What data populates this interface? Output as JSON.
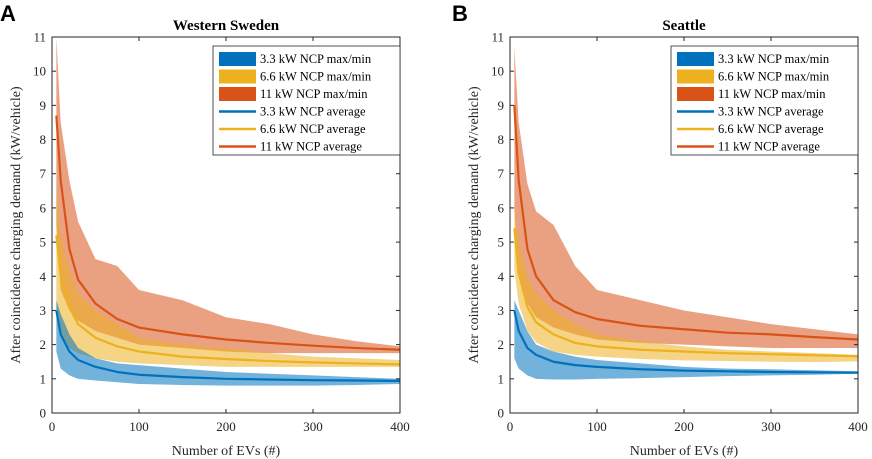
{
  "chart_data": [
    {
      "type": "area",
      "panel_label": "A",
      "title": "Western Sweden",
      "xlabel": "Number of EVs (#)",
      "ylabel": "After coincidence charging demand (kW/vehicle)",
      "xlim": [
        0,
        400
      ],
      "ylim": [
        0,
        11
      ],
      "xticks": [
        "0",
        "100",
        "200",
        "300",
        "400"
      ],
      "yticks": [
        "0",
        "1",
        "2",
        "3",
        "4",
        "5",
        "6",
        "7",
        "8",
        "9",
        "10",
        "11"
      ],
      "grid": false,
      "legend_position": "top-right",
      "x": [
        5,
        10,
        20,
        30,
        50,
        75,
        100,
        150,
        200,
        250,
        300,
        350,
        400
      ],
      "bands": [
        {
          "name": "11 kW NCP max/min",
          "color": "#D95319",
          "upper": [
            11.0,
            8.5,
            6.8,
            5.6,
            4.5,
            4.3,
            3.6,
            3.3,
            2.8,
            2.6,
            2.3,
            2.1,
            1.95
          ],
          "lower": [
            5.5,
            3.6,
            3.0,
            2.7,
            2.4,
            2.2,
            2.0,
            1.9,
            1.8,
            1.75,
            1.75,
            1.75,
            1.75
          ]
        },
        {
          "name": "6.6 kW NCP max/min",
          "color": "#EDB120",
          "upper": [
            6.6,
            5.2,
            4.2,
            3.5,
            3.0,
            2.6,
            2.2,
            2.0,
            1.9,
            1.75,
            1.65,
            1.6,
            1.55
          ],
          "lower": [
            2.9,
            2.2,
            1.9,
            1.75,
            1.6,
            1.5,
            1.45,
            1.4,
            1.35,
            1.35,
            1.35,
            1.35,
            1.35
          ]
        },
        {
          "name": "3.3 kW NCP max/min",
          "color": "#0072BD",
          "upper": [
            3.3,
            2.9,
            2.3,
            1.9,
            1.6,
            1.45,
            1.4,
            1.3,
            1.2,
            1.15,
            1.1,
            1.05,
            1.0
          ],
          "lower": [
            1.8,
            1.3,
            1.1,
            1.0,
            0.95,
            0.9,
            0.85,
            0.82,
            0.8,
            0.8,
            0.8,
            0.82,
            0.85
          ]
        }
      ],
      "series": [
        {
          "name": "3.3 kW NCP average",
          "color": "#0072BD",
          "values": [
            3.0,
            2.3,
            1.8,
            1.55,
            1.35,
            1.2,
            1.12,
            1.05,
            1.0,
            0.98,
            0.96,
            0.95,
            0.94
          ]
        },
        {
          "name": "6.6 kW NCP average",
          "color": "#EDB120",
          "values": [
            5.2,
            4.0,
            3.1,
            2.6,
            2.2,
            1.95,
            1.8,
            1.65,
            1.58,
            1.52,
            1.48,
            1.45,
            1.42
          ]
        },
        {
          "name": "11 kW NCP average",
          "color": "#D95319",
          "values": [
            8.7,
            6.8,
            4.8,
            3.9,
            3.2,
            2.75,
            2.5,
            2.3,
            2.15,
            2.05,
            1.97,
            1.9,
            1.85
          ]
        }
      ],
      "legend": [
        "3.3 kW NCP max/min",
        "6.6 kW NCP max/min",
        "11 kW NCP max/min",
        "3.3 kW NCP average",
        "6.6 kW NCP average",
        "11 kW NCP average"
      ]
    },
    {
      "type": "area",
      "panel_label": "B",
      "title": "Seattle",
      "xlabel": "Number of EVs (#)",
      "ylabel": "After coincidence charging demand (kW/vehicle)",
      "xlim": [
        0,
        400
      ],
      "ylim": [
        0,
        11
      ],
      "xticks": [
        "0",
        "100",
        "200",
        "300",
        "400"
      ],
      "yticks": [
        "0",
        "1",
        "2",
        "3",
        "4",
        "5",
        "6",
        "7",
        "8",
        "9",
        "10",
        "11"
      ],
      "grid": false,
      "legend_position": "top-right",
      "x": [
        5,
        10,
        20,
        30,
        50,
        75,
        100,
        150,
        200,
        250,
        300,
        350,
        400
      ],
      "bands": [
        {
          "name": "11 kW NCP max/min",
          "color": "#D95319",
          "upper": [
            10.7,
            8.5,
            6.7,
            5.9,
            5.5,
            4.3,
            3.6,
            3.3,
            3.0,
            2.8,
            2.6,
            2.45,
            2.3
          ],
          "lower": [
            6.0,
            4.0,
            3.2,
            2.8,
            2.5,
            2.3,
            2.15,
            2.05,
            2.0,
            1.95,
            1.9,
            1.9,
            1.9
          ]
        },
        {
          "name": "6.6 kW NCP max/min",
          "color": "#EDB120",
          "upper": [
            6.1,
            5.0,
            4.0,
            3.5,
            3.0,
            2.6,
            2.3,
            2.1,
            1.95,
            1.85,
            1.8,
            1.75,
            1.7
          ]
        },
        {
          "name": "3.3 kW NCP max/min",
          "color": "#0072BD",
          "upper": [
            3.3,
            3.0,
            2.4,
            2.0,
            1.8,
            1.65,
            1.55,
            1.45,
            1.35,
            1.3,
            1.28,
            1.25,
            1.22
          ],
          "lower": [
            1.6,
            1.3,
            1.1,
            1.0,
            0.98,
            0.98,
            1.0,
            1.02,
            1.05,
            1.08,
            1.1,
            1.12,
            1.15
          ]
        }
      ],
      "series": [
        {
          "name": "3.3 kW NCP average",
          "color": "#0072BD",
          "values": [
            3.0,
            2.4,
            1.9,
            1.7,
            1.5,
            1.4,
            1.35,
            1.28,
            1.24,
            1.22,
            1.2,
            1.19,
            1.18
          ]
        },
        {
          "name": "6.6 kW NCP average",
          "color": "#EDB120",
          "values": [
            5.4,
            4.1,
            3.1,
            2.65,
            2.3,
            2.05,
            1.95,
            1.85,
            1.8,
            1.75,
            1.72,
            1.69,
            1.66
          ]
        },
        {
          "name": "11 kW NCP average",
          "color": "#D95319",
          "values": [
            9.0,
            6.8,
            4.8,
            4.0,
            3.3,
            2.95,
            2.75,
            2.55,
            2.45,
            2.35,
            2.3,
            2.22,
            2.15
          ]
        }
      ],
      "legend": [
        "3.3 kW NCP max/min",
        "6.6 kW NCP max/min",
        "11 kW NCP max/min",
        "3.3 kW NCP average",
        "6.6 kW NCP average",
        "11 kW NCP average"
      ]
    }
  ]
}
